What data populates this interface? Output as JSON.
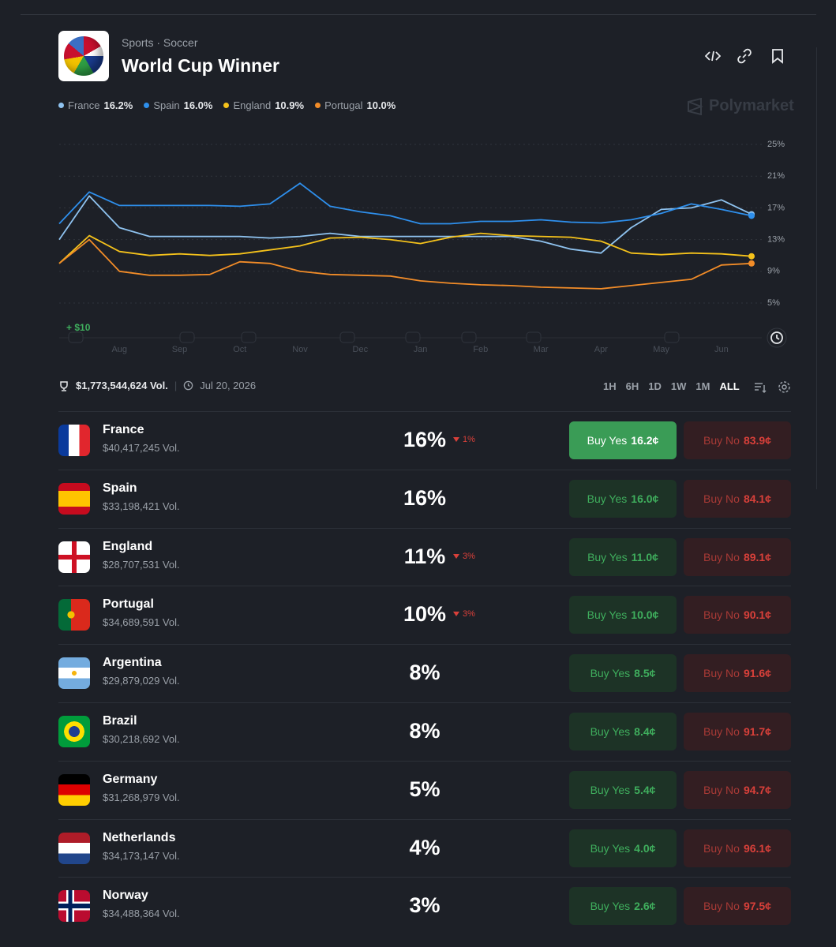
{
  "header": {
    "category": "Sports",
    "subcategory": "Soccer",
    "title": "World Cup Winner"
  },
  "brand": "Polymarket",
  "chart_data": {
    "type": "line",
    "categories": [
      null,
      null,
      "Aug",
      null,
      "Sep",
      null,
      "Oct",
      null,
      "Nov",
      null,
      "Dec",
      null,
      "Jan",
      null,
      "Feb",
      null,
      "Mar",
      null,
      "Apr",
      null,
      "May",
      null,
      "Jun",
      null
    ],
    "series": [
      {
        "name": "France",
        "color": "#8fc3f0",
        "legend_label": "16.2%",
        "values": [
          13,
          18.5,
          14.5,
          13.4,
          13.4,
          13.4,
          13.4,
          13.2,
          13.4,
          13.8,
          13.4,
          13.4,
          13.4,
          13.4,
          13.4,
          13.4,
          12.8,
          11.8,
          11.3,
          14.5,
          16.8,
          17,
          18,
          16.2
        ]
      },
      {
        "name": "Spain",
        "color": "#2e8fec",
        "legend_label": "16.0%",
        "values": [
          15,
          19,
          17.3,
          17.3,
          17.3,
          17.3,
          17.2,
          17.5,
          20.1,
          17.2,
          16.5,
          16,
          15,
          15,
          15.3,
          15.3,
          15.5,
          15.2,
          15.1,
          15.5,
          16.3,
          17.5,
          16.8,
          16
        ]
      },
      {
        "name": "England",
        "color": "#f5c21b",
        "legend_label": "10.9%",
        "values": [
          10,
          13.5,
          11.5,
          11,
          11.2,
          11,
          11.2,
          11.7,
          12.2,
          13.2,
          13.3,
          13,
          12.5,
          13.3,
          13.8,
          13.5,
          13.4,
          13.3,
          12.8,
          11.3,
          11.1,
          11.3,
          11.2,
          10.9
        ]
      },
      {
        "name": "Portugal",
        "color": "#f28c28",
        "legend_label": "10.0%",
        "values": [
          10,
          13,
          9,
          8.5,
          8.5,
          8.6,
          10.2,
          10,
          9,
          8.6,
          8.5,
          8.4,
          7.8,
          7.5,
          7.3,
          7.2,
          7,
          6.9,
          6.8,
          7.2,
          7.6,
          8,
          9.8,
          10
        ]
      }
    ],
    "ylim": [
      5,
      25
    ],
    "yticks": [
      {
        "value": 5,
        "label": "5%"
      },
      {
        "value": 9,
        "label": "9%"
      },
      {
        "value": 13,
        "label": "13%"
      },
      {
        "value": 17,
        "label": "17%"
      },
      {
        "value": 21,
        "label": "21%"
      },
      {
        "value": 25,
        "label": "25%"
      }
    ],
    "grid": true,
    "annotation": "+ $10"
  },
  "footer_bar": {
    "volume": "$1,773,544,624 Vol.",
    "end_date": "Jul 20, 2026",
    "ranges": [
      "1H",
      "6H",
      "1D",
      "1W",
      "1M",
      "ALL"
    ],
    "selected_range": "ALL"
  },
  "labels": {
    "buy_yes": "Buy Yes",
    "buy_no": "Buy No"
  },
  "outcomes": [
    {
      "name": "France",
      "volume": "$40,417,245 Vol.",
      "chance": "16%",
      "change": "1%",
      "yes": "16.2¢",
      "no": "83.9¢"
    },
    {
      "name": "Spain",
      "volume": "$33,198,421 Vol.",
      "chance": "16%",
      "yes": "16.0¢",
      "no": "84.1¢"
    },
    {
      "name": "England",
      "volume": "$28,707,531 Vol.",
      "chance": "11%",
      "change": "3%",
      "yes": "11.0¢",
      "no": "89.1¢"
    },
    {
      "name": "Portugal",
      "volume": "$34,689,591 Vol.",
      "chance": "10%",
      "change": "3%",
      "yes": "10.0¢",
      "no": "90.1¢"
    },
    {
      "name": "Argentina",
      "volume": "$29,879,029 Vol.",
      "chance": "8%",
      "yes": "8.5¢",
      "no": "91.6¢"
    },
    {
      "name": "Brazil",
      "volume": "$30,218,692 Vol.",
      "chance": "8%",
      "yes": "8.4¢",
      "no": "91.7¢"
    },
    {
      "name": "Germany",
      "volume": "$31,268,979 Vol.",
      "chance": "5%",
      "yes": "5.4¢",
      "no": "94.7¢"
    },
    {
      "name": "Netherlands",
      "volume": "$34,173,147 Vol.",
      "chance": "4%",
      "yes": "4.0¢",
      "no": "96.1¢"
    },
    {
      "name": "Norway",
      "volume": "$34,488,364 Vol.",
      "chance": "3%",
      "yes": "2.6¢",
      "no": "97.5¢"
    }
  ]
}
